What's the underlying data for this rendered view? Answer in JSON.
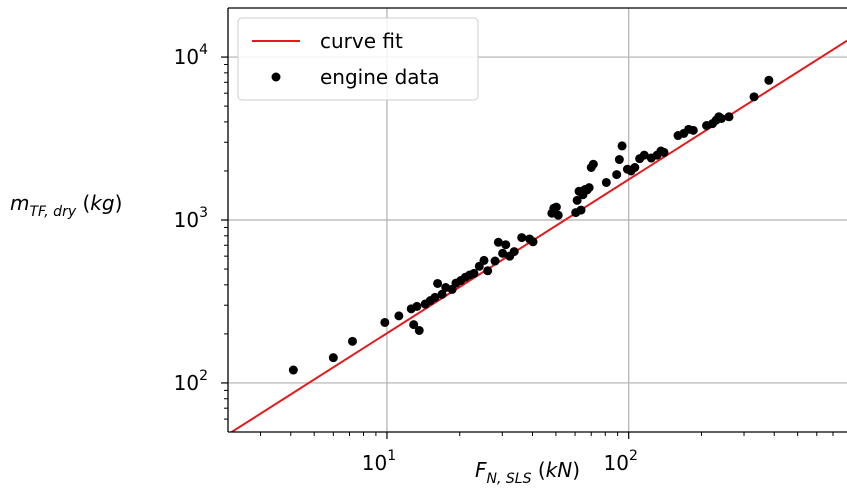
{
  "chart_data": {
    "type": "scatter",
    "xscale": "log",
    "yscale": "log",
    "xlim": [
      2.2,
      800
    ],
    "ylim": [
      50,
      20000
    ],
    "grid": true,
    "legend_position": "top-left",
    "xlabel": {
      "main": "F",
      "sub": "N, SLS",
      "unit": " (kN)"
    },
    "ylabel": {
      "main": "m",
      "sub": "TF, dry",
      "unit": " (kg)"
    },
    "xticks": [
      {
        "value": 10,
        "base": "10",
        "exp": "1"
      },
      {
        "value": 100,
        "base": "10",
        "exp": "2"
      }
    ],
    "yticks": [
      {
        "value": 100,
        "base": "10",
        "exp": "2"
      },
      {
        "value": 1000,
        "base": "10",
        "exp": "3"
      },
      {
        "value": 10000,
        "base": "10",
        "exp": "4"
      }
    ],
    "colors": {
      "fit": "#e41a1c",
      "points": "#000000",
      "grid": "#b0b0b0"
    },
    "series": [
      {
        "name": "curve fit",
        "kind": "line",
        "x": [
          2.2,
          800
        ],
        "y": [
          48.4,
          12600
        ]
      },
      {
        "name": "engine data",
        "kind": "scatter",
        "x": [
          4.1,
          6.0,
          7.2,
          9.8,
          11.2,
          12.6,
          12.9,
          13.3,
          13.6,
          14.4,
          15.1,
          15.8,
          16.2,
          16.9,
          17.5,
          18.6,
          19.3,
          20.2,
          21.1,
          22.0,
          22.9,
          24.1,
          25.2,
          26.1,
          28.0,
          28.9,
          30.1,
          31.0,
          32.2,
          33.6,
          36.1,
          38.9,
          40.2,
          48.1,
          49.0,
          50.2,
          51.1,
          60.4,
          61.2,
          62.3,
          63.5,
          64.7,
          66.0,
          67.3,
          68.6,
          70.0,
          71.4,
          80.8,
          89.2,
          91.5,
          93.9,
          98.8,
          102.3,
          106.0,
          111.0,
          116.0,
          124.0,
          131.0,
          136.0,
          140.0,
          160.0,
          169.0,
          177.0,
          185.0,
          210.0,
          222.0,
          230.0,
          236.0,
          242.0,
          260.0,
          330.0,
          380.0
        ],
        "y": [
          120,
          143,
          180,
          235,
          258,
          285,
          228,
          295,
          210,
          305,
          320,
          335,
          408,
          350,
          385,
          375,
          410,
          425,
          445,
          460,
          470,
          520,
          565,
          488,
          560,
          730,
          625,
          705,
          600,
          640,
          780,
          765,
          735,
          1100,
          1180,
          1200,
          1070,
          1110,
          1320,
          1500,
          1150,
          1430,
          1540,
          1530,
          1580,
          2100,
          2200,
          1700,
          1900,
          2350,
          2850,
          2050,
          2000,
          2100,
          2380,
          2500,
          2400,
          2500,
          2650,
          2600,
          3300,
          3400,
          3600,
          3550,
          3800,
          3900,
          4100,
          4300,
          4200,
          4300,
          5700,
          7200
        ]
      }
    ]
  }
}
